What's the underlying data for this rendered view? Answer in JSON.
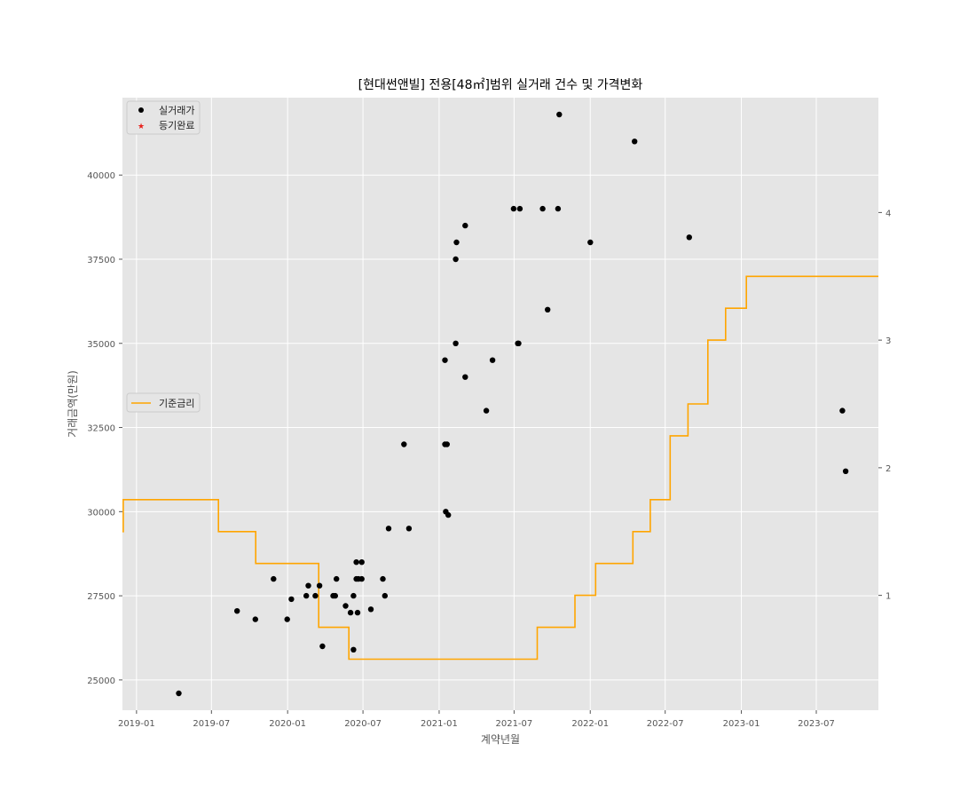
{
  "chart_data": {
    "type": "scatter",
    "title": "[현대썬앤빌] 전용[48㎡]범위 실거래 건수 및 가격변화",
    "xlabel": "계약년월",
    "ylabel": "거래금액(만원)",
    "y2label": "",
    "x_ticks": [
      "2019-01",
      "2019-07",
      "2020-01",
      "2020-07",
      "2021-01",
      "2021-07",
      "2022-01",
      "2022-07",
      "2023-01",
      "2023-07"
    ],
    "y_ticks": [
      25000,
      27500,
      30000,
      32500,
      35000,
      37500,
      40000
    ],
    "y2_ticks": [
      1,
      2,
      3,
      4
    ],
    "xlim": [
      "2018-11-28",
      "2023-11-28"
    ],
    "ylim": [
      24100,
      42300
    ],
    "y2lim": [
      0.1,
      4.9
    ],
    "grid": true,
    "legend_top": {
      "placement": "top-left",
      "entries": [
        "실거래가",
        "등기완료"
      ]
    },
    "legend_mid": {
      "placement": "center-left",
      "entries": [
        "기준금리"
      ]
    },
    "colors": {
      "price": "#000000",
      "registered": "#e8211c",
      "rate": "#ffa500",
      "background": "#e5e5e5",
      "grid": "#ffffff"
    },
    "series": [
      {
        "name": "실거래가",
        "points": [
          [
            "2019-04-13",
            24600
          ],
          [
            "2019-09-01",
            27050
          ],
          [
            "2019-10-15",
            26800
          ],
          [
            "2019-11-28",
            28000
          ],
          [
            "2019-12-31",
            26800
          ],
          [
            "2020-01-10",
            27400
          ],
          [
            "2020-02-15",
            27500
          ],
          [
            "2020-02-20",
            27800
          ],
          [
            "2020-03-08",
            27500
          ],
          [
            "2020-03-18",
            27800
          ],
          [
            "2020-03-25",
            26000
          ],
          [
            "2020-04-20",
            27500
          ],
          [
            "2020-04-25",
            27500
          ],
          [
            "2020-04-28",
            28000
          ],
          [
            "2020-05-20",
            27200
          ],
          [
            "2020-06-01",
            27000
          ],
          [
            "2020-06-08",
            25900
          ],
          [
            "2020-06-08",
            27500
          ],
          [
            "2020-06-15",
            28000
          ],
          [
            "2020-06-15",
            28500
          ],
          [
            "2020-06-18",
            27000
          ],
          [
            "2020-06-20",
            28000
          ],
          [
            "2020-06-28",
            28000
          ],
          [
            "2020-06-28",
            28500
          ],
          [
            "2020-07-20",
            27100
          ],
          [
            "2020-08-18",
            28000
          ],
          [
            "2020-08-23",
            27500
          ],
          [
            "2020-09-01",
            29500
          ],
          [
            "2020-10-08",
            32000
          ],
          [
            "2020-10-20",
            29500
          ],
          [
            "2021-01-15",
            32000
          ],
          [
            "2021-01-15",
            34500
          ],
          [
            "2021-01-17",
            30000
          ],
          [
            "2021-01-20",
            32000
          ],
          [
            "2021-01-23",
            29900
          ],
          [
            "2021-02-10",
            35000
          ],
          [
            "2021-02-10",
            37500
          ],
          [
            "2021-02-12",
            38000
          ],
          [
            "2021-03-05",
            38500
          ],
          [
            "2021-03-05",
            34000
          ],
          [
            "2021-04-25",
            33000
          ],
          [
            "2021-05-10",
            34500
          ],
          [
            "2021-06-30",
            39000
          ],
          [
            "2021-07-10",
            35000
          ],
          [
            "2021-07-12",
            35000
          ],
          [
            "2021-07-15",
            39000
          ],
          [
            "2021-09-08",
            39000
          ],
          [
            "2021-09-20",
            36000
          ],
          [
            "2021-10-15",
            39000
          ],
          [
            "2021-10-18",
            41800
          ],
          [
            "2022-01-01",
            38000
          ],
          [
            "2022-04-18",
            41000
          ],
          [
            "2022-08-28",
            38150
          ],
          [
            "2023-09-02",
            33000
          ],
          [
            "2023-09-10",
            31200
          ]
        ]
      },
      {
        "name": "등기완료",
        "points": []
      },
      {
        "name": "기준금리",
        "type": "step",
        "axis": "right",
        "points": [
          [
            "2018-11-28",
            1.5
          ],
          [
            "2018-11-30",
            1.75
          ],
          [
            "2019-07-18",
            1.5
          ],
          [
            "2019-10-16",
            1.25
          ],
          [
            "2020-03-16",
            0.75
          ],
          [
            "2020-05-28",
            0.5
          ],
          [
            "2021-08-26",
            0.75
          ],
          [
            "2021-11-25",
            1.0
          ],
          [
            "2022-01-14",
            1.25
          ],
          [
            "2022-04-14",
            1.5
          ],
          [
            "2022-05-26",
            1.75
          ],
          [
            "2022-07-13",
            2.25
          ],
          [
            "2022-08-25",
            2.5
          ],
          [
            "2022-10-12",
            3.0
          ],
          [
            "2022-11-24",
            3.25
          ],
          [
            "2023-01-13",
            3.5
          ],
          [
            "2023-11-28",
            3.5
          ]
        ]
      }
    ]
  }
}
